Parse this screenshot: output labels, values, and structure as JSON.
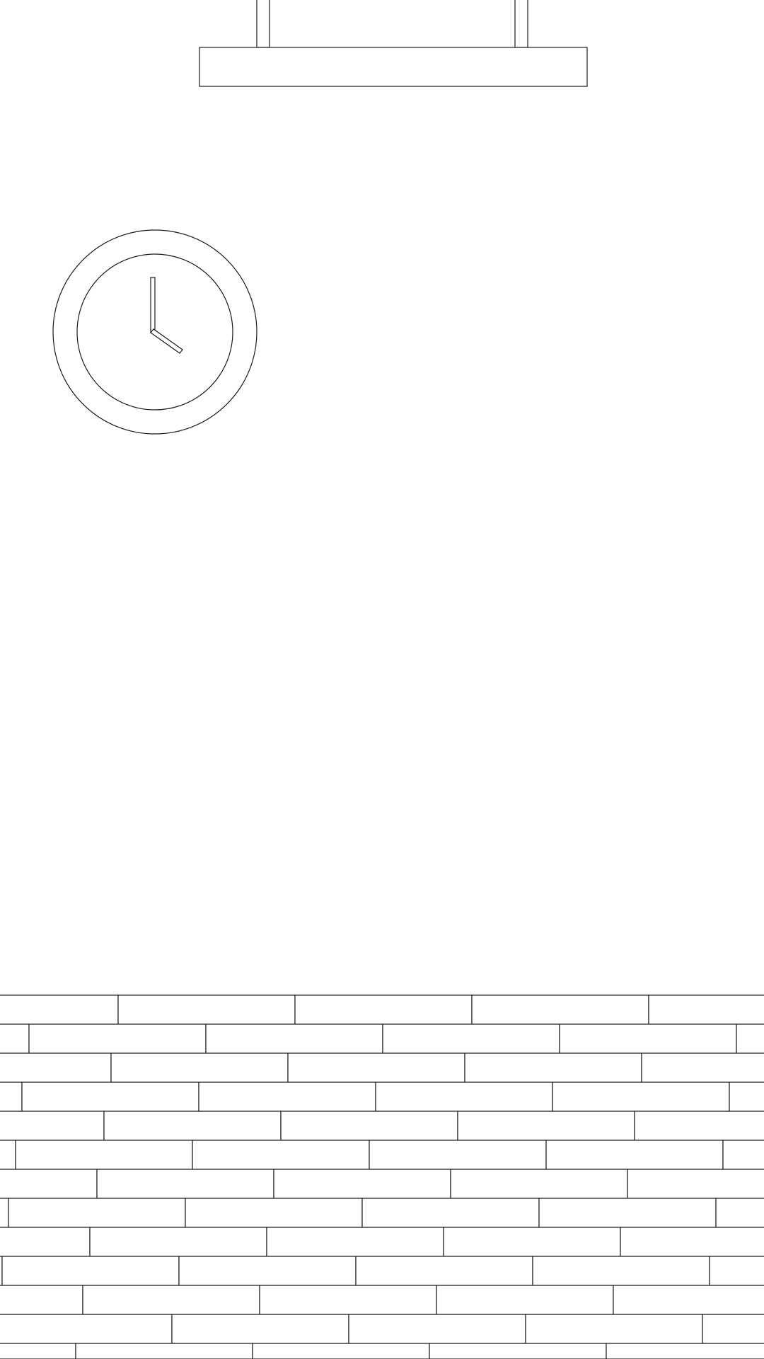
{
  "scene": {
    "stroke_color": "#1a1a1a",
    "fill_color": "#ffffff"
  },
  "clock": {
    "shows_time": "4:00"
  }
}
